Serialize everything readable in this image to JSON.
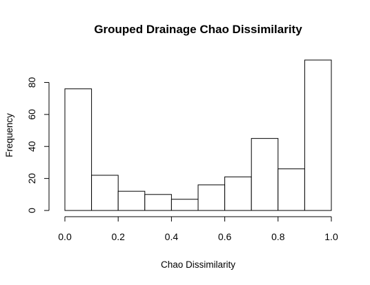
{
  "chart_data": {
    "type": "bar",
    "title": "Grouped Drainage Chao Dissimilarity",
    "xlabel": "Chao Dissimilarity",
    "ylabel": "Frequency",
    "bins": [
      {
        "from": 0.0,
        "to": 0.1,
        "count": 76
      },
      {
        "from": 0.1,
        "to": 0.2,
        "count": 22
      },
      {
        "from": 0.2,
        "to": 0.3,
        "count": 12
      },
      {
        "from": 0.3,
        "to": 0.4,
        "count": 10
      },
      {
        "from": 0.4,
        "to": 0.5,
        "count": 7
      },
      {
        "from": 0.5,
        "to": 0.6,
        "count": 16
      },
      {
        "from": 0.6,
        "to": 0.7,
        "count": 21
      },
      {
        "from": 0.7,
        "to": 0.8,
        "count": 45
      },
      {
        "from": 0.8,
        "to": 0.9,
        "count": 26
      },
      {
        "from": 0.9,
        "to": 1.0,
        "count": 94
      }
    ],
    "xlim": [
      0.0,
      1.0
    ],
    "ylim": [
      0,
      94
    ],
    "x_ticks": [
      0.0,
      0.2,
      0.4,
      0.6,
      0.8,
      1.0
    ],
    "x_tick_labels": [
      "0.0",
      "0.2",
      "0.4",
      "0.6",
      "0.8",
      "1.0"
    ],
    "y_ticks": [
      0,
      20,
      40,
      60,
      80
    ],
    "y_tick_labels": [
      "0",
      "20",
      "40",
      "60",
      "80"
    ],
    "grid": false,
    "legend": "none"
  }
}
